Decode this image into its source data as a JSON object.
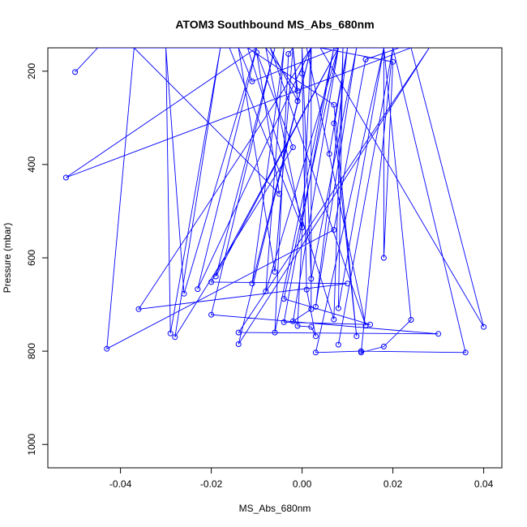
{
  "chart_data": {
    "type": "line",
    "title": "ATOM3 Southbound MS_Abs_680nm",
    "xlabel": "MS_Abs_680nm",
    "ylabel": "Pressure (mbar)",
    "xlim": [
      -0.056,
      0.044
    ],
    "ylim": [
      1050,
      150
    ],
    "y_reversed": true,
    "x_ticks": [
      -0.04,
      -0.02,
      0.0,
      0.02,
      0.04
    ],
    "x_tick_labels": [
      "-0.04",
      "-0.02",
      "0.00",
      "0.02",
      "0.04"
    ],
    "y_ticks": [
      200,
      400,
      600,
      800,
      1000
    ],
    "y_tick_labels": [
      "200",
      "400",
      "600",
      "800",
      "1000"
    ],
    "grid": false,
    "series": [
      {
        "color": "#0000ff",
        "marker": "open-circle",
        "points": [
          [
            -0.05,
            202
          ],
          [
            -0.045,
            150
          ],
          [
            -0.01,
            150
          ],
          [
            -0.052,
            428
          ],
          [
            0.024,
            150
          ],
          [
            0.022,
            148
          ],
          [
            0.014,
            175
          ],
          [
            0.007,
            540
          ],
          [
            -0.043,
            795
          ],
          [
            -0.037,
            150
          ],
          [
            -0.005,
            463
          ],
          [
            -0.01,
            160
          ],
          [
            -0.002,
            363
          ],
          [
            -0.028,
            770
          ],
          [
            -0.018,
            150
          ],
          [
            -0.029,
            762
          ],
          [
            -0.03,
            150
          ],
          [
            -0.026,
            677
          ],
          [
            -0.01,
            150
          ],
          [
            -0.023,
            667
          ],
          [
            0.002,
            150
          ],
          [
            -0.036,
            710
          ],
          [
            0.01,
            655
          ],
          [
            -0.02,
            652
          ],
          [
            0.008,
            150
          ],
          [
            -0.019,
            640
          ],
          [
            -0.006,
            150
          ],
          [
            -0.02,
            722
          ],
          [
            0.03,
            763
          ],
          [
            -0.014,
            760
          ],
          [
            0.028,
            150
          ],
          [
            -0.014,
            785
          ],
          [
            0.002,
            150
          ],
          [
            -0.011,
            655
          ],
          [
            -0.004,
            150
          ],
          [
            -0.008,
            672
          ],
          [
            0.008,
            150
          ],
          [
            -0.011,
            222
          ],
          [
            -0.014,
            150
          ],
          [
            -0.006,
            630
          ],
          [
            -0.002,
            150
          ],
          [
            -0.003,
            163
          ],
          [
            -0.006,
            760
          ],
          [
            0.007,
            150
          ],
          [
            -0.004,
            738
          ],
          [
            0.015,
            743
          ],
          [
            -0.004,
            688
          ],
          [
            0.008,
            150
          ],
          [
            -0.002,
            736
          ],
          [
            0.002,
            710
          ],
          [
            0.002,
            150
          ],
          [
            -0.001,
            746
          ],
          [
            0.002,
            748
          ],
          [
            0.003,
            768
          ],
          [
            0.001,
            668
          ],
          [
            0.0,
            205
          ],
          [
            0.0,
            150
          ],
          [
            0.002,
            645
          ],
          [
            0.012,
            150
          ],
          [
            0.003,
            705
          ],
          [
            0.01,
            150
          ],
          [
            0.006,
            377
          ],
          [
            0.01,
            150
          ],
          [
            0.007,
            312
          ],
          [
            0.012,
            768
          ],
          [
            0.007,
            272
          ],
          [
            -0.012,
            150
          ],
          [
            0.007,
            732
          ],
          [
            0.009,
            150
          ],
          [
            0.008,
            708
          ],
          [
            0.018,
            150
          ],
          [
            0.003,
            803
          ],
          [
            0.013,
            800
          ],
          [
            0.036,
            803
          ],
          [
            0.02,
            150
          ],
          [
            0.008,
            786
          ],
          [
            0.02,
            150
          ],
          [
            0.013,
            803
          ],
          [
            0.018,
            790
          ],
          [
            0.024,
            733
          ],
          [
            0.018,
            150
          ],
          [
            0.018,
            600
          ],
          [
            0.02,
            180
          ],
          [
            0.004,
            150
          ],
          [
            0.04,
            748
          ],
          [
            0.024,
            150
          ],
          [
            0.001,
            150
          ],
          [
            0.014,
            745
          ],
          [
            -0.007,
            150
          ],
          [
            -0.001,
            264
          ],
          [
            -0.002,
            150
          ],
          [
            -0.001,
            242
          ],
          [
            -0.008,
            150
          ],
          [
            0.0,
            535
          ],
          [
            -0.016,
            150
          ]
        ]
      }
    ]
  }
}
